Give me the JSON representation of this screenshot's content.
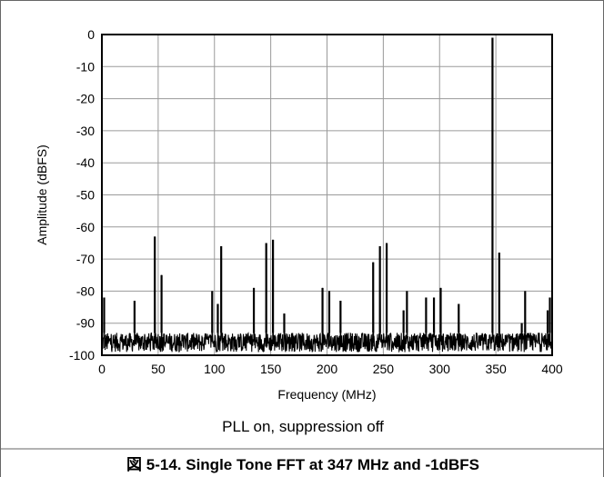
{
  "chart_data": {
    "type": "line",
    "title": "",
    "subtitle": "PLL on, suppression off",
    "caption": "図 5-14. Single Tone FFT at 347 MHz and -1dBFS",
    "xlabel": "Frequency (MHz)",
    "ylabel": "Amplitude (dBFS)",
    "xlim": [
      0,
      400
    ],
    "ylim": [
      -100,
      0
    ],
    "xticks": [
      0,
      50,
      100,
      150,
      200,
      250,
      300,
      350,
      400
    ],
    "yticks": [
      0,
      -10,
      -20,
      -30,
      -40,
      -50,
      -60,
      -70,
      -80,
      -90,
      -100
    ],
    "grid": true,
    "noise_floor": {
      "min": -99,
      "max": -93
    },
    "spurs": [
      {
        "x": 2,
        "y": -82
      },
      {
        "x": 29,
        "y": -83
      },
      {
        "x": 47,
        "y": -63
      },
      {
        "x": 53,
        "y": -75
      },
      {
        "x": 98,
        "y": -80
      },
      {
        "x": 103,
        "y": -84
      },
      {
        "x": 106,
        "y": -66
      },
      {
        "x": 135,
        "y": -79
      },
      {
        "x": 146,
        "y": -65
      },
      {
        "x": 152,
        "y": -64
      },
      {
        "x": 162,
        "y": -87
      },
      {
        "x": 196,
        "y": -79
      },
      {
        "x": 202,
        "y": -80
      },
      {
        "x": 212,
        "y": -83
      },
      {
        "x": 241,
        "y": -71
      },
      {
        "x": 247,
        "y": -66
      },
      {
        "x": 253,
        "y": -65
      },
      {
        "x": 268,
        "y": -86
      },
      {
        "x": 271,
        "y": -80
      },
      {
        "x": 288,
        "y": -82
      },
      {
        "x": 295,
        "y": -82
      },
      {
        "x": 301,
        "y": -79
      },
      {
        "x": 317,
        "y": -84
      },
      {
        "x": 347,
        "y": -1
      },
      {
        "x": 353,
        "y": -68
      },
      {
        "x": 373,
        "y": -90
      },
      {
        "x": 376,
        "y": -80
      },
      {
        "x": 396,
        "y": -86
      },
      {
        "x": 398,
        "y": -82
      }
    ]
  }
}
